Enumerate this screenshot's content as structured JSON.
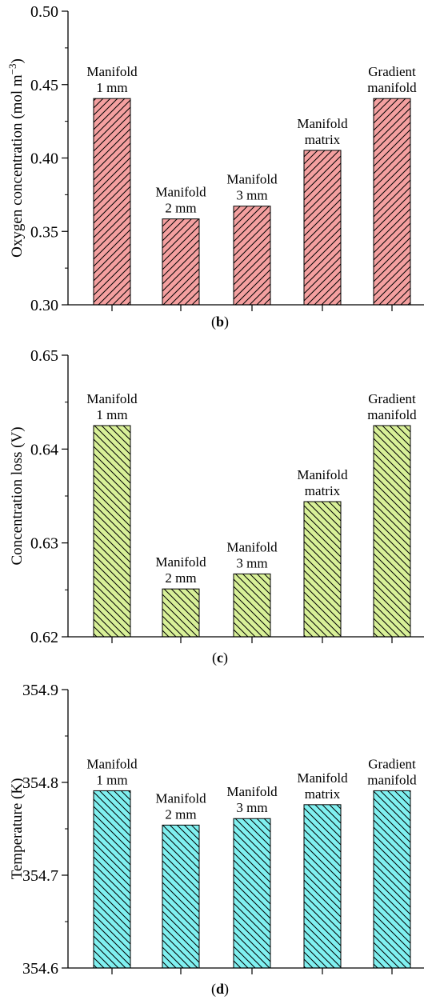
{
  "chart_data": [
    {
      "type": "bar",
      "panel_label": "(b)",
      "panel_letter": "b",
      "ylabel": "Oxygen concentration (mol m",
      "ylabel_sup": "−3",
      "ylabel_tail": ")",
      "ylim": [
        0.3,
        0.5
      ],
      "yticks": [
        0.3,
        0.35,
        0.4,
        0.45,
        0.5
      ],
      "tick_decimals": 2,
      "categories": [
        [
          "Manifold",
          "1 mm"
        ],
        [
          "Manifold",
          "2 mm"
        ],
        [
          "Manifold",
          "3 mm"
        ],
        [
          "Manifold",
          "matrix"
        ],
        [
          "Gradient",
          "manifold"
        ]
      ],
      "values": [
        0.4405,
        0.3585,
        0.3672,
        0.4052,
        0.4405
      ],
      "fill_color": "#f4a0a0",
      "hatch": "forward-diagonal",
      "grid": false
    },
    {
      "type": "bar",
      "panel_label": "(c)",
      "panel_letter": "c",
      "ylabel": "Concentration loss (V)",
      "ylim": [
        0.62,
        0.65
      ],
      "yticks": [
        0.62,
        0.63,
        0.64,
        0.65
      ],
      "tick_decimals": 2,
      "categories": [
        [
          "Manifold",
          "1 mm"
        ],
        [
          "Manifold",
          "2 mm"
        ],
        [
          "Manifold",
          "3 mm"
        ],
        [
          "Manifold",
          "matrix"
        ],
        [
          "Gradient",
          "manifold"
        ]
      ],
      "values": [
        0.6425,
        0.6251,
        0.6267,
        0.6344,
        0.6425
      ],
      "fill_color": "#d8f098",
      "hatch": "back-diagonal",
      "grid": false
    },
    {
      "type": "bar",
      "panel_label": "(d)",
      "panel_letter": "d",
      "ylabel": "Temperature (K)",
      "ylim": [
        354.6,
        354.9
      ],
      "yticks": [
        354.6,
        354.7,
        354.8,
        354.9
      ],
      "tick_decimals": 1,
      "categories": [
        [
          "Manifold",
          "1 mm"
        ],
        [
          "Manifold",
          "2 mm"
        ],
        [
          "Manifold",
          "3 mm"
        ],
        [
          "Manifold",
          "matrix"
        ],
        [
          "Gradient",
          "manifold"
        ]
      ],
      "values": [
        354.791,
        354.754,
        354.761,
        354.776,
        354.791
      ],
      "fill_color": "#80f0f0",
      "hatch": "back-diagonal",
      "grid": false
    }
  ]
}
